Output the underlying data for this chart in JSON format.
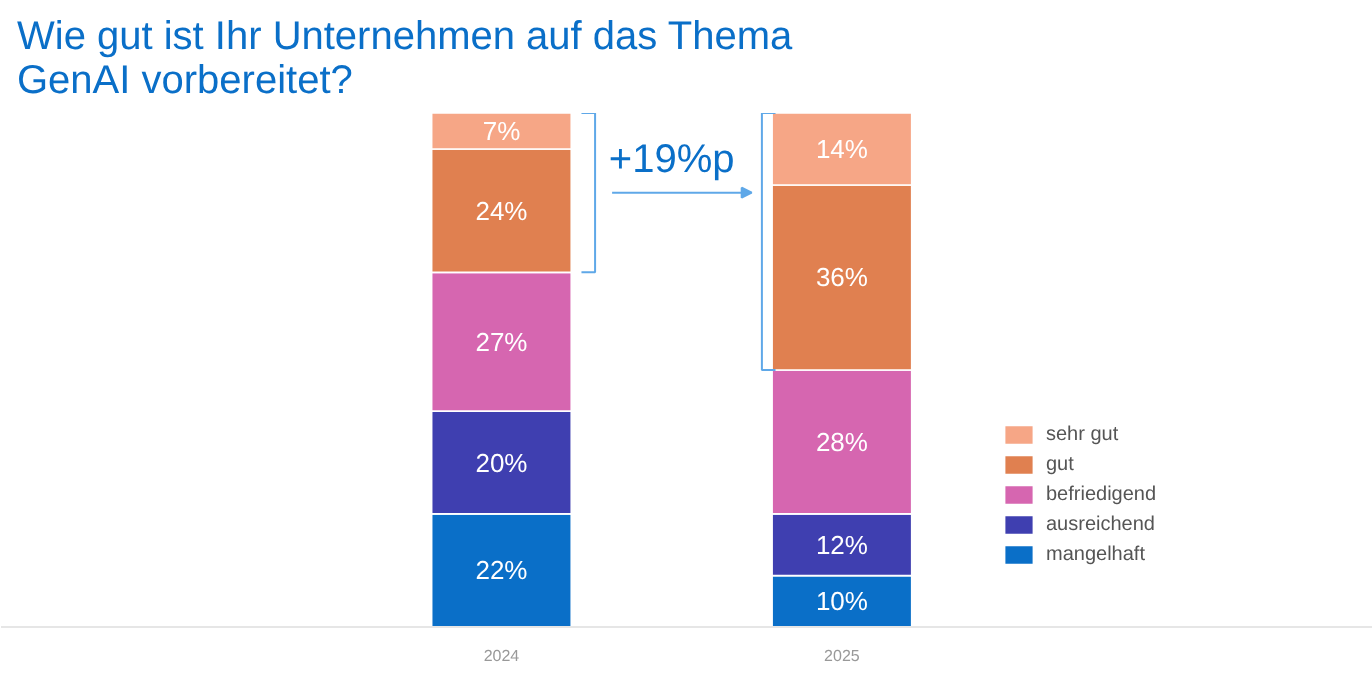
{
  "chart_data": {
    "type": "bar",
    "stacked": true,
    "title": "Wie gut ist Ihr Unternehmen auf das Thema\nGenAI vorbereitet?",
    "categories": [
      "2024",
      "2025"
    ],
    "series": [
      {
        "name": "mangelhaft",
        "color": "#0a6fc8",
        "values": [
          22,
          10
        ],
        "value_labels": [
          "22%",
          "10%"
        ]
      },
      {
        "name": "ausreichend",
        "color": "#3f3fb0",
        "values": [
          20,
          12
        ],
        "value_labels": [
          "20%",
          "12%"
        ]
      },
      {
        "name": "befriedigend",
        "color": "#d666b0",
        "values": [
          27,
          28
        ],
        "value_labels": [
          "27%",
          "28%"
        ]
      },
      {
        "name": "gut",
        "color": "#e08050",
        "values": [
          24,
          36
        ],
        "value_labels": [
          "24%",
          "36%"
        ]
      },
      {
        "name": "sehr gut",
        "color": "#f6a686",
        "values": [
          7,
          14
        ],
        "value_labels": [
          "7%",
          "14%"
        ]
      }
    ],
    "annotations": [
      "+19%p"
    ],
    "legend": "right",
    "grid": false
  }
}
